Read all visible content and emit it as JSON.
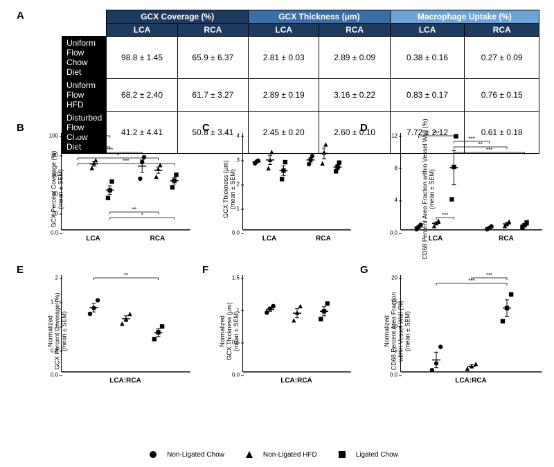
{
  "panel_labels": {
    "A": "A",
    "B": "B",
    "C": "C",
    "D": "D",
    "E": "E",
    "F": "F",
    "G": "G"
  },
  "table": {
    "groups": [
      {
        "label": "GCX Coverage (%)",
        "color": "#1f3a5f"
      },
      {
        "label": "GCX Thickness (μm)",
        "color": "#3b6ea5"
      },
      {
        "label": "Macrophage Uptake (%)",
        "color": "#6ea3d6"
      }
    ],
    "subcols": [
      "LCA",
      "RCA"
    ],
    "rows": [
      {
        "label_line1": "Uniform Flow",
        "label_line2": "Chow Diet",
        "vals": [
          "98.8 ± 1.45",
          "65.9 ± 6.37",
          "2.81 ± 0.03",
          "2.89 ± 0.09",
          "0.38 ± 0.16",
          "0.27 ± 0.09"
        ]
      },
      {
        "label_line1": "Uniform Flow",
        "label_line2": "HFD",
        "vals": [
          "68.2 ± 2.40",
          "61.7 ± 3.27",
          "2.89 ± 0.19",
          "3.16 ± 0.22",
          "0.83 ± 0.17",
          "0.76 ± 0.15"
        ]
      },
      {
        "label_line1": "Disturbed Flow",
        "label_line2": "Chow Diet",
        "vals": [
          "41.2 ± 4.41",
          "50.8 ± 3.41",
          "2.45 ± 0.20",
          "2.60 ± 0.10",
          "7.72 ± 2.12",
          "0.61 ± 0.18"
        ]
      }
    ],
    "rowhdr_bg": "#000000",
    "rowhdr_fg": "#ffffff"
  },
  "legend": {
    "items": [
      {
        "symbol": "circle",
        "label": "Non-Ligated Chow"
      },
      {
        "symbol": "triangle",
        "label": "Non-Ligated HFD"
      },
      {
        "symbol": "square",
        "label": "Ligated Chow"
      }
    ]
  },
  "colors": {
    "marker": "#000000",
    "axis": "#000000",
    "bg": "#ffffff"
  },
  "charts": {
    "B": {
      "ylabel": "GCX Percent Coverage (%)\n(mean ± SEM)",
      "ylim": [
        0,
        100
      ],
      "ytick_step": 20,
      "xgroups": [
        "LCA",
        "RCA"
      ],
      "series": [
        {
          "sym": "circle"
        },
        {
          "sym": "triangle"
        },
        {
          "sym": "square"
        }
      ],
      "data": {
        "LCA": [
          {
            "pts": [
              97,
              99,
              100
            ],
            "mean": 98.8,
            "sem": 1.45
          },
          {
            "pts": [
              64,
              69,
              72
            ],
            "mean": 68.2,
            "sem": 2.4
          },
          {
            "pts": [
              33,
              41,
              50
            ],
            "mean": 41.2,
            "sem": 4.41
          }
        ],
        "RCA": [
          {
            "pts": [
              53,
              70,
              75
            ],
            "mean": 65.9,
            "sem": 6.37
          },
          {
            "pts": [
              55,
              63,
              67
            ],
            "mean": 61.7,
            "sem": 3.27
          },
          {
            "pts": [
              44,
              51,
              57
            ],
            "mean": 50.8,
            "sem": 3.41
          }
        ]
      },
      "sig": [
        {
          "from": [
            "LCA",
            0
          ],
          "to": [
            "LCA",
            1
          ],
          "label": "*",
          "level": 1
        },
        {
          "from": [
            "LCA",
            0
          ],
          "to": [
            "LCA",
            2
          ],
          "label": "***",
          "level": 2
        },
        {
          "from": [
            "LCA",
            1
          ],
          "to": [
            "LCA",
            2
          ],
          "label": "**",
          "level": 0
        },
        {
          "from": [
            "LCA",
            0
          ],
          "to": [
            "RCA",
            0
          ],
          "label": "***",
          "level": 3
        },
        {
          "from": [
            "LCA",
            0
          ],
          "to": [
            "RCA",
            1
          ],
          "label": "*",
          "level": 4
        },
        {
          "from": [
            "LCA",
            0
          ],
          "to": [
            "RCA",
            2
          ],
          "label": "***",
          "level": 5
        },
        {
          "from": [
            "LCA",
            2
          ],
          "to": [
            "RCA",
            2
          ],
          "label": "*",
          "level": -1
        },
        {
          "from": [
            "LCA",
            2
          ],
          "to": [
            "RCA",
            1
          ],
          "label": "**",
          "level": -2
        }
      ]
    },
    "C": {
      "ylabel": "GCX Thickness (μm)\n(mean ± SEM)",
      "ylim": [
        0,
        4
      ],
      "ytick_step": 1,
      "xgroups": [
        "LCA",
        "RCA"
      ],
      "data": {
        "LCA": [
          {
            "pts": [
              2.75,
              2.82,
              2.86
            ],
            "mean": 2.81,
            "sem": 0.03
          },
          {
            "pts": [
              2.55,
              2.9,
              3.22
            ],
            "mean": 2.89,
            "sem": 0.19
          },
          {
            "pts": [
              2.1,
              2.45,
              2.8
            ],
            "mean": 2.45,
            "sem": 0.2
          }
        ],
        "RCA": [
          {
            "pts": [
              2.72,
              2.9,
              3.05
            ],
            "mean": 2.89,
            "sem": 0.09
          },
          {
            "pts": [
              2.75,
              3.2,
              3.53
            ],
            "mean": 3.16,
            "sem": 0.22
          },
          {
            "pts": [
              2.42,
              2.6,
              2.78
            ],
            "mean": 2.6,
            "sem": 0.1
          }
        ]
      },
      "sig": []
    },
    "D": {
      "ylabel": "CD68 Percent Area Fraction within Vessel Wall (%)\n(mean ± SEM)",
      "ylim": [
        0,
        12
      ],
      "ytick_step": 4,
      "xgroups": [
        "LCA",
        "RCA"
      ],
      "data": {
        "LCA": [
          {
            "pts": [
              0.1,
              0.4,
              0.65
            ],
            "mean": 0.38,
            "sem": 0.16
          },
          {
            "pts": [
              0.5,
              0.85,
              1.15
            ],
            "mean": 0.83,
            "sem": 0.17
          },
          {
            "pts": [
              3.8,
              7.8,
              11.6
            ],
            "mean": 7.72,
            "sem": 2.12
          }
        ],
        "RCA": [
          {
            "pts": [
              0.1,
              0.27,
              0.45
            ],
            "mean": 0.27,
            "sem": 0.09
          },
          {
            "pts": [
              0.5,
              0.76,
              1.05
            ],
            "mean": 0.76,
            "sem": 0.15
          },
          {
            "pts": [
              0.3,
              0.6,
              0.95
            ],
            "mean": 0.61,
            "sem": 0.18
          }
        ]
      },
      "sig": [
        {
          "from": [
            "LCA",
            0
          ],
          "to": [
            "LCA",
            2
          ],
          "label": "***",
          "level": 0
        },
        {
          "from": [
            "LCA",
            1
          ],
          "to": [
            "LCA",
            2
          ],
          "label": "***",
          "level": -1
        },
        {
          "from": [
            "LCA",
            2
          ],
          "to": [
            "RCA",
            0
          ],
          "label": "***",
          "level": 1
        },
        {
          "from": [
            "LCA",
            2
          ],
          "to": [
            "RCA",
            1
          ],
          "label": "**",
          "level": 2
        },
        {
          "from": [
            "LCA",
            2
          ],
          "to": [
            "RCA",
            2
          ],
          "label": "***",
          "level": 3
        }
      ]
    },
    "E": {
      "ylabel": "Normalized\nGCX Percent Coverage (%)\n(mean ± SEM)",
      "ylim": [
        0,
        2.0
      ],
      "ytick_step": 0.5,
      "xgroups": [
        "LCA:RCA"
      ],
      "data": {
        "LCA:RCA": [
          {
            "pts": [
              1.2,
              1.32,
              1.48
            ],
            "mean": 1.33,
            "sem": 0.09
          },
          {
            "pts": [
              1.0,
              1.1,
              1.2
            ],
            "mean": 1.1,
            "sem": 0.06
          },
          {
            "pts": [
              0.68,
              0.82,
              0.94
            ],
            "mean": 0.81,
            "sem": 0.08
          }
        ]
      },
      "sig": [
        {
          "from": [
            "LCA:RCA",
            0
          ],
          "to": [
            "LCA:RCA",
            2
          ],
          "label": "**",
          "level": 0
        }
      ]
    },
    "F": {
      "ylabel": "Normalized\nGCX Thickness (μm)\n(mean ± SEM)",
      "ylim": [
        0,
        1.5
      ],
      "ytick_step": 0.5,
      "xgroups": [
        "LCA:RCA"
      ],
      "data": {
        "LCA:RCA": [
          {
            "pts": [
              0.92,
              0.98,
              1.02
            ],
            "mean": 0.97,
            "sem": 0.03
          },
          {
            "pts": [
              0.8,
              0.92,
              1.02
            ],
            "mean": 0.91,
            "sem": 0.07
          },
          {
            "pts": [
              0.82,
              0.94,
              1.06
            ],
            "mean": 0.94,
            "sem": 0.07
          }
        ]
      },
      "sig": []
    },
    "G": {
      "ylabel": "Normalized\nCD68 Percent Area Fraction\nwithin Vessel Wall (%)\n(mean ± SEM)",
      "ylim": [
        0,
        20
      ],
      "ytick_step": 5,
      "xgroups": [
        "LCA:RCA"
      ],
      "data": {
        "LCA:RCA": [
          {
            "pts": [
              0.4,
              1.8,
              5.2
            ],
            "mean": 2.5,
            "sem": 1.6
          },
          {
            "pts": [
              0.7,
              1.2,
              1.7
            ],
            "mean": 1.2,
            "sem": 0.3
          },
          {
            "pts": [
              10.5,
              13.2,
              16.0
            ],
            "mean": 13.2,
            "sem": 1.7
          }
        ]
      },
      "sig": [
        {
          "from": [
            "LCA:RCA",
            0
          ],
          "to": [
            "LCA:RCA",
            2
          ],
          "label": "***",
          "level": 1
        },
        {
          "from": [
            "LCA:RCA",
            1
          ],
          "to": [
            "LCA:RCA",
            2
          ],
          "label": "***",
          "level": 0
        }
      ]
    }
  }
}
